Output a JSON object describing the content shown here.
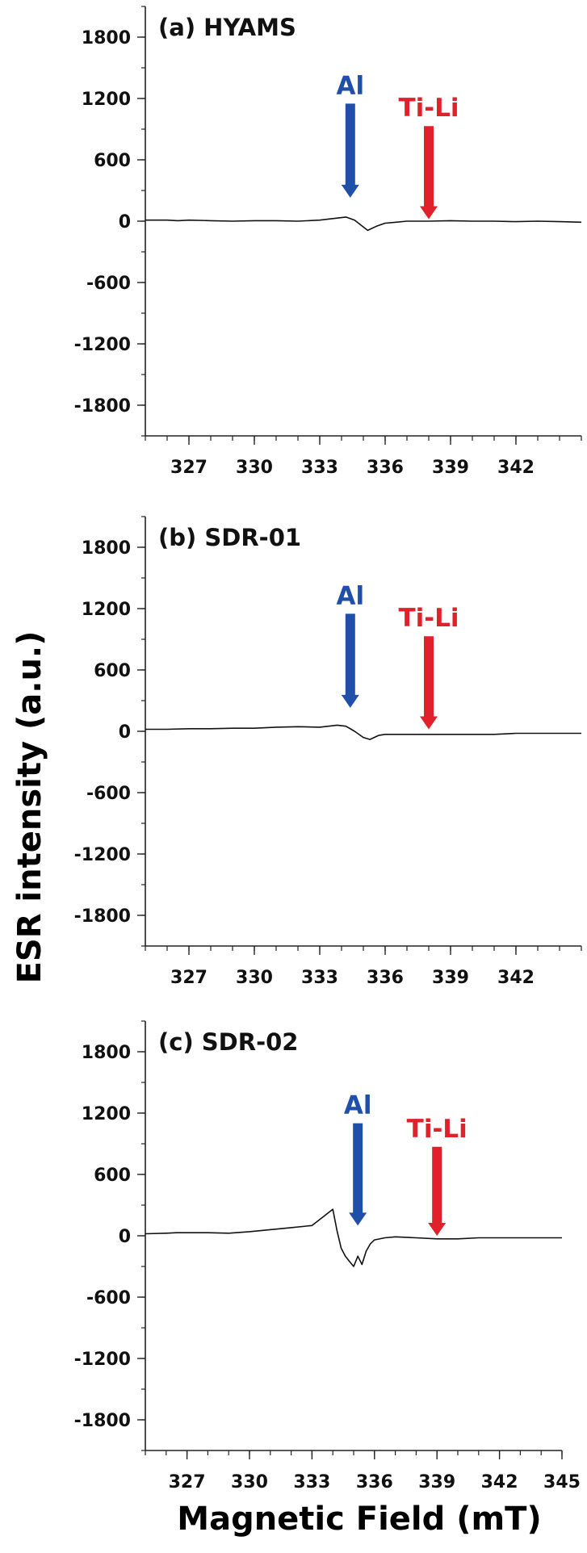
{
  "ylabel": "ESR intensity (a.u.)",
  "xlabel": "Magnetic Field (mT)",
  "colors": {
    "Al": "#1f4fa8",
    "Ti-Li": "#e0202a",
    "trace": "#111111"
  },
  "chart_data": [
    {
      "type": "line",
      "title": "(a) HYAMS",
      "xlim": [
        325,
        345
      ],
      "ylim": [
        -2100,
        2100
      ],
      "yticks": [
        1800,
        1200,
        600,
        0,
        -600,
        -1200,
        -1800
      ],
      "ytick_labels": [
        "1800",
        "1200",
        "600",
        "0",
        "-600",
        "-1200",
        "-1800"
      ],
      "xticks": [
        327,
        330,
        333,
        336,
        339,
        342
      ],
      "xtick_labels": [
        "327",
        "330",
        "333",
        "336",
        "339",
        "342"
      ],
      "annotations": [
        {
          "label": "Al",
          "x": 334.4,
          "y_top": 1150,
          "y_tip": 230,
          "color": "#1f4fa8"
        },
        {
          "label": "Ti-Li",
          "x": 338.0,
          "y_top": 930,
          "y_tip": 20,
          "color": "#e0202a"
        }
      ],
      "series": [
        {
          "x": [
            325,
            326,
            326.5,
            327,
            328,
            329,
            330,
            331,
            332,
            333,
            333.8,
            334.2,
            334.6,
            334.9,
            335.2,
            335.6,
            336,
            336.5,
            337,
            338,
            339,
            340,
            341,
            342,
            343,
            344,
            345
          ],
          "y": [
            10,
            10,
            5,
            10,
            5,
            0,
            5,
            5,
            0,
            10,
            30,
            40,
            10,
            -40,
            -90,
            -50,
            -20,
            -10,
            0,
            0,
            5,
            0,
            0,
            -5,
            0,
            -5,
            -10
          ]
        }
      ]
    },
    {
      "type": "line",
      "title": "(b) SDR-01",
      "xlim": [
        325,
        345
      ],
      "ylim": [
        -2100,
        2100
      ],
      "yticks": [
        1800,
        1200,
        600,
        0,
        -600,
        -1200,
        -1800
      ],
      "ytick_labels": [
        "1800",
        "1200",
        "600",
        "0",
        "-600",
        "-1200",
        "-1800"
      ],
      "xticks": [
        327,
        330,
        333,
        336,
        339,
        342
      ],
      "xtick_labels": [
        "327",
        "330",
        "333",
        "336",
        "339",
        "342"
      ],
      "annotations": [
        {
          "label": "Al",
          "x": 334.4,
          "y_top": 1150,
          "y_tip": 230,
          "color": "#1f4fa8"
        },
        {
          "label": "Ti-Li",
          "x": 338.0,
          "y_top": 930,
          "y_tip": 20,
          "color": "#e0202a"
        }
      ],
      "series": [
        {
          "x": [
            325,
            326,
            327,
            328,
            329,
            330,
            331,
            332,
            333,
            333.8,
            334.2,
            334.6,
            335.0,
            335.3,
            335.7,
            336,
            337,
            338,
            339,
            340,
            341,
            342,
            343,
            344,
            345
          ],
          "y": [
            20,
            20,
            25,
            25,
            30,
            30,
            40,
            45,
            40,
            60,
            50,
            0,
            -60,
            -80,
            -40,
            -30,
            -30,
            -30,
            -30,
            -30,
            -30,
            -20,
            -20,
            -20,
            -20
          ]
        }
      ]
    },
    {
      "type": "line",
      "title": "(c) SDR-02",
      "xlim": [
        325,
        345
      ],
      "ylim": [
        -2100,
        2100
      ],
      "yticks": [
        1800,
        1200,
        600,
        0,
        -600,
        -1200,
        -1800
      ],
      "ytick_labels": [
        "1800",
        "1200",
        "600",
        "0",
        "-600",
        "-1200",
        "-1800"
      ],
      "xticks": [
        327,
        330,
        333,
        336,
        339,
        342,
        345
      ],
      "xtick_labels": [
        "327",
        "330",
        "333",
        "336",
        "339",
        "342",
        "345"
      ],
      "annotations": [
        {
          "label": "Al",
          "x": 335.2,
          "y_top": 1100,
          "y_tip": 100,
          "color": "#1f4fa8"
        },
        {
          "label": "Ti-Li",
          "x": 339.0,
          "y_top": 870,
          "y_tip": 0,
          "color": "#e0202a"
        }
      ],
      "series": [
        {
          "x": [
            325,
            326,
            326.5,
            327,
            328,
            329,
            330,
            331,
            332,
            333,
            333.5,
            334,
            334.2,
            334.4,
            334.6,
            334.8,
            335.0,
            335.2,
            335.4,
            335.6,
            335.8,
            336,
            336.5,
            337,
            338,
            339,
            340,
            341,
            342,
            343,
            344,
            344.5,
            345
          ],
          "y": [
            20,
            25,
            30,
            30,
            30,
            25,
            40,
            60,
            80,
            100,
            180,
            260,
            50,
            -120,
            -200,
            -250,
            -300,
            -200,
            -280,
            -150,
            -80,
            -40,
            -20,
            -10,
            -20,
            -30,
            -30,
            -20,
            -20,
            -20,
            -20,
            -20,
            -20
          ]
        }
      ]
    }
  ]
}
